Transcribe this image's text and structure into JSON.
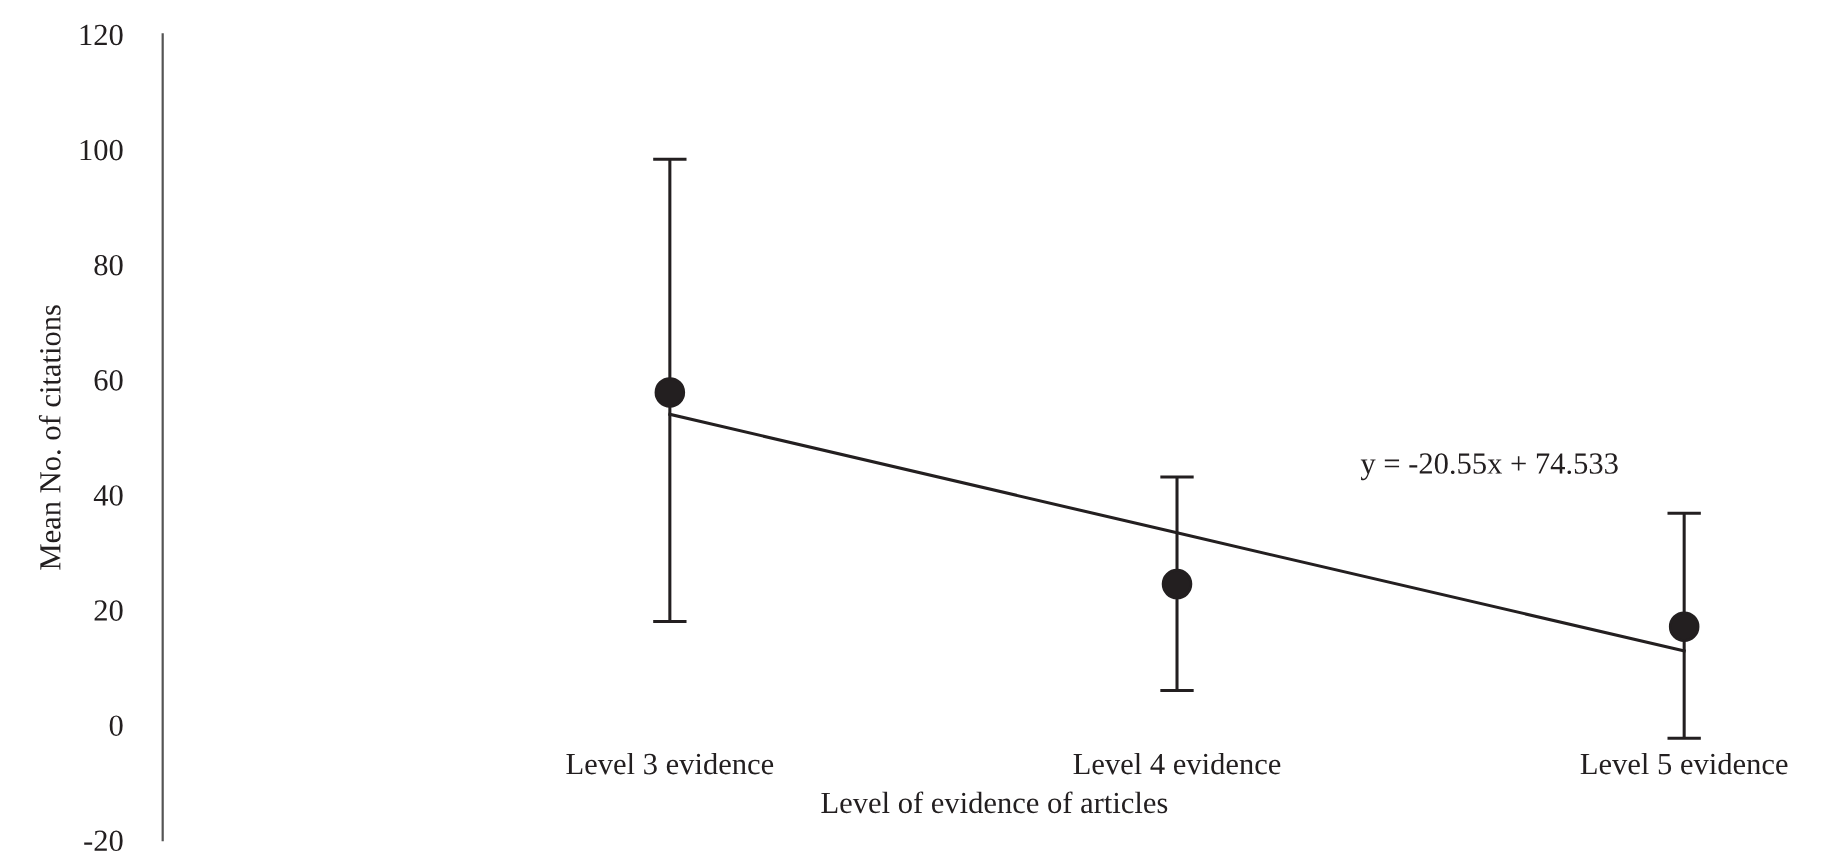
{
  "chart_data": {
    "type": "scatter",
    "xlabel": "Level of evidence of articles",
    "ylabel": "Mean No. of citations",
    "categories": [
      "Level 3 evidence",
      "Level 4 evidence",
      "Level 5 evidence"
    ],
    "series": [
      {
        "color": "#231f20",
        "values": [
          57.8,
          24.5,
          17.1
        ],
        "errors": [
          [
            18.0,
            98.3
          ],
          [
            6.0,
            43.1
          ],
          [
            -2.3,
            36.8
          ]
        ],
        "marker": "circle"
      },
      {
        "type": "line",
        "color": "#231f20",
        "values": [
          54.0,
          33.4,
          12.9
        ],
        "marker": "none",
        "line_style": "solid"
      }
    ],
    "annotations": [
      "y = -20.55x + 74.533"
    ],
    "ylim": [
      -20,
      120
    ],
    "yticks": [
      -20,
      0,
      20,
      40,
      60,
      80,
      100,
      120
    ],
    "grid": false,
    "legend": false
  }
}
